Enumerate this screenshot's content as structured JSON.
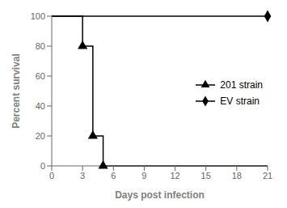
{
  "chart_data": {
    "type": "line",
    "xlabel": "Days post infection",
    "ylabel": "Percent survival",
    "xlim": [
      0,
      21
    ],
    "ylim": [
      0,
      100
    ],
    "xticks": [
      0,
      3,
      6,
      9,
      12,
      15,
      18,
      21
    ],
    "yticks": [
      0,
      20,
      40,
      60,
      80,
      100
    ],
    "grid": false,
    "legend": "center right",
    "series": [
      {
        "name": "201 strain",
        "color": "#000000",
        "marker": "triangle",
        "x": [
          0,
          3,
          3,
          4,
          4,
          5,
          5,
          21
        ],
        "values": [
          100,
          100,
          80,
          80,
          20,
          20,
          0,
          0
        ],
        "marker_x": [
          3,
          4,
          5
        ],
        "marker_values": [
          80,
          20,
          0
        ]
      },
      {
        "name": "EV strain",
        "color": "#000000",
        "marker": "diamond",
        "x": [
          0,
          21
        ],
        "values": [
          100,
          100
        ],
        "marker_x": [
          21
        ],
        "marker_values": [
          100
        ]
      }
    ]
  }
}
